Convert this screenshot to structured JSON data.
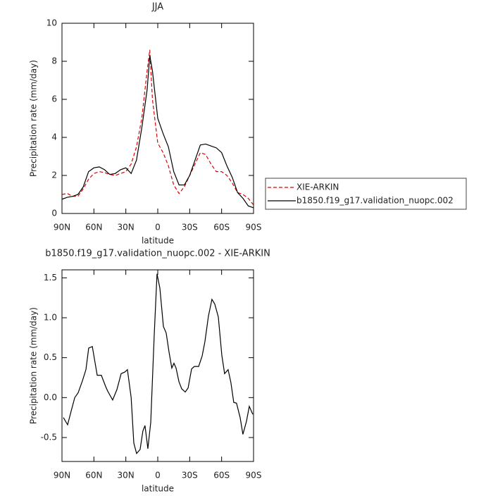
{
  "chart_data": [
    {
      "type": "line",
      "title": "JJA",
      "xlabel": "latitude",
      "ylabel": "Precipitation rate (mm/day)",
      "xlim": [
        90,
        -90
      ],
      "ylim": [
        0,
        10
      ],
      "xticks": [
        {
          "value": 90,
          "label": "90N"
        },
        {
          "value": 60,
          "label": "60N"
        },
        {
          "value": 30,
          "label": "30N"
        },
        0,
        {
          "value": -30,
          "label": "30S"
        },
        {
          "value": -60,
          "label": "60S"
        },
        {
          "value": -90,
          "label": "90S"
        }
      ],
      "yticks": [
        0,
        2,
        4,
        6,
        8,
        10
      ],
      "legend": "right",
      "x": [
        90,
        85,
        80,
        75,
        70,
        65,
        60,
        55,
        50,
        45,
        40,
        35,
        30,
        25,
        20,
        15,
        10,
        7.5,
        5,
        0,
        -5,
        -10,
        -15,
        -20,
        -25,
        -30,
        -35,
        -40,
        -45,
        -50,
        -55,
        -60,
        -65,
        -70,
        -75,
        -80,
        -85,
        -90
      ],
      "series": [
        {
          "name": "XIE-ARKIN",
          "color": "#e00000",
          "linestyle": "dashed",
          "values": [
            1.0,
            1.05,
            0.9,
            0.9,
            1.3,
            1.8,
            2.1,
            2.2,
            2.15,
            2.05,
            2.0,
            2.1,
            2.2,
            2.6,
            3.5,
            5.0,
            7.5,
            8.6,
            6.0,
            3.7,
            3.2,
            2.5,
            1.5,
            1.05,
            1.4,
            2.0,
            2.6,
            3.2,
            3.1,
            2.6,
            2.2,
            2.2,
            2.0,
            1.6,
            1.1,
            1.0,
            0.8,
            0.45
          ]
        },
        {
          "name": "b1850.f19_g17.validation_nuopc.002",
          "color": "#000000",
          "linestyle": "solid",
          "values": [
            0.75,
            0.85,
            0.9,
            1.0,
            1.4,
            2.2,
            2.4,
            2.45,
            2.3,
            2.05,
            2.1,
            2.3,
            2.4,
            2.1,
            2.8,
            4.5,
            6.5,
            8.3,
            7.5,
            5.0,
            4.2,
            3.5,
            2.2,
            1.5,
            1.5,
            2.0,
            2.8,
            3.6,
            3.65,
            3.55,
            3.45,
            3.2,
            2.5,
            1.9,
            1.1,
            0.8,
            0.4,
            0.3
          ]
        }
      ]
    },
    {
      "type": "line",
      "title": "b1850.f19_g17.validation_nuopc.002 - XIE-ARKIN",
      "xlabel": "latitude",
      "ylabel": "Precipitation rate (mm/day)",
      "xlim": [
        90,
        -90
      ],
      "ylim": [
        -0.8,
        1.6
      ],
      "xticks": [
        {
          "value": 90,
          "label": "90N"
        },
        {
          "value": 60,
          "label": "60N"
        },
        {
          "value": 30,
          "label": "30N"
        },
        0,
        {
          "value": -30,
          "label": "30S"
        },
        {
          "value": -60,
          "label": "60S"
        },
        {
          "value": -90,
          "label": "90S"
        }
      ],
      "yticks": [
        -0.5,
        {
          "value": 0,
          "label": "0.0"
        },
        0.5,
        {
          "value": 1,
          "label": "1.0"
        },
        1.5
      ],
      "x": [
        88.7,
        84.7,
        81.4,
        78,
        74.8,
        70.8,
        67.5,
        64.9,
        61.5,
        56.9,
        53,
        49,
        47,
        42.4,
        38.4,
        34.4,
        31,
        28.5,
        25,
        22.5,
        19.9,
        16.6,
        14,
        12,
        9.3,
        6.6,
        3.3,
        0.7,
        -2,
        -5.3,
        -7.9,
        -10.6,
        -13.2,
        -15.2,
        -17.2,
        -19.9,
        -22.5,
        -25.8,
        -28.5,
        -31.8,
        -34.4,
        -38.4,
        -41.7,
        -44.3,
        -47.6,
        -50.9,
        -53.6,
        -56.9,
        -60.2,
        -62.8,
        -66.1,
        -68.7,
        -71.4,
        -74,
        -77.4,
        -80,
        -83.3,
        -86,
        -89.3
      ],
      "series": [
        {
          "name": null,
          "color": "#000000",
          "linestyle": "solid",
          "values": [
            -0.25,
            -0.34,
            -0.17,
            0.0,
            0.06,
            0.21,
            0.35,
            0.62,
            0.64,
            0.28,
            0.28,
            0.14,
            0.08,
            -0.03,
            0.1,
            0.3,
            0.32,
            0.35,
            0.0,
            -0.57,
            -0.7,
            -0.65,
            -0.42,
            -0.35,
            -0.64,
            -0.31,
            0.79,
            1.55,
            1.37,
            0.89,
            0.81,
            0.57,
            0.37,
            0.43,
            0.37,
            0.2,
            0.11,
            0.07,
            0.12,
            0.36,
            0.39,
            0.39,
            0.52,
            0.7,
            1.02,
            1.23,
            1.17,
            1.01,
            0.53,
            0.3,
            0.35,
            0.19,
            -0.06,
            -0.07,
            -0.25,
            -0.46,
            -0.3,
            -0.11,
            -0.21
          ]
        }
      ]
    }
  ]
}
